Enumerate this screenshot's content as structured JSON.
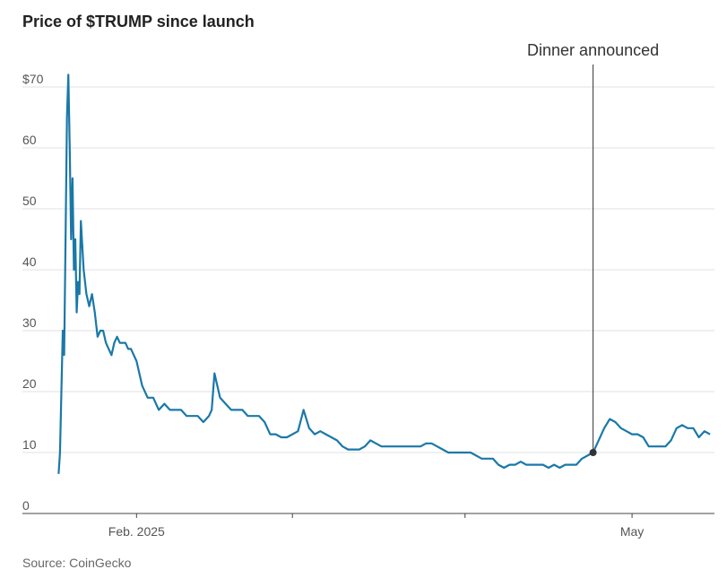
{
  "chart_data": {
    "type": "line",
    "title": "Price of $TRUMP since launch",
    "source": "Source: CoinGecko",
    "x": [
      18,
      18.25,
      18.5,
      18.75,
      19,
      19.25,
      19.5,
      19.75,
      20,
      20.25,
      20.5,
      20.75,
      21,
      21.25,
      21.5,
      21.75,
      22,
      22.5,
      23,
      23.5,
      24,
      24.5,
      25,
      25.5,
      26,
      26.5,
      27,
      27.5,
      28,
      28.5,
      29,
      29.5,
      30,
      30.5,
      31,
      31.5,
      32,
      33,
      34,
      35,
      36,
      37,
      38,
      39,
      40,
      41,
      42,
      43,
      44,
      45,
      45.5,
      46,
      47,
      48,
      49,
      50,
      51,
      52,
      53,
      54,
      55,
      56,
      57,
      58,
      59,
      60,
      61,
      62,
      63,
      64,
      65,
      66,
      67,
      68,
      69,
      70,
      71,
      72,
      73,
      74,
      75,
      76,
      77,
      78,
      79,
      80,
      81,
      82,
      83,
      84,
      85,
      86,
      87,
      88,
      89,
      90,
      91,
      92,
      93,
      94,
      95,
      96,
      97,
      98,
      99,
      100,
      101,
      102,
      103,
      104,
      105,
      106,
      107,
      108,
      109,
      110,
      111,
      112,
      113,
      114,
      115,
      116,
      117,
      118,
      119,
      120,
      121,
      122,
      123,
      124,
      125,
      126,
      127,
      128,
      129,
      130,
      131,
      132,
      133,
      134,
      135
    ],
    "values": [
      6.5,
      10,
      20,
      30,
      26,
      45,
      65,
      72,
      60,
      45,
      55,
      40,
      45,
      33,
      38,
      36,
      48,
      40,
      36,
      34,
      36,
      33,
      29,
      30,
      30,
      28,
      27,
      26,
      28,
      29,
      28,
      28,
      28,
      27,
      27,
      26,
      25,
      21,
      19,
      19,
      17,
      18,
      17,
      17,
      17,
      16,
      16,
      16,
      15,
      16,
      17,
      23,
      19,
      18,
      17,
      17,
      17,
      16,
      16,
      16,
      15,
      13,
      13,
      12.5,
      12.5,
      13,
      13.5,
      17,
      14,
      13,
      13.5,
      13,
      12.5,
      12,
      11,
      10.5,
      10.5,
      10.5,
      11,
      12,
      11.5,
      11,
      11,
      11,
      11,
      11,
      11,
      11,
      11,
      11.5,
      11.5,
      11,
      10.5,
      10,
      10,
      10,
      10,
      10,
      9.5,
      9,
      9,
      9,
      8,
      7.5,
      8,
      8,
      8.5,
      8,
      8,
      8,
      8,
      7.5,
      8,
      7.5,
      8,
      8,
      8,
      9,
      9.5,
      10,
      12,
      14,
      15.5,
      15,
      14,
      13.5,
      13,
      13,
      12.5,
      11,
      11,
      11,
      11,
      12,
      14,
      14.5,
      14,
      14,
      12.5,
      13.5,
      13
    ],
    "color": "#1a78a8",
    "xlim": [
      11.5,
      135.8
    ],
    "xticks": [
      {
        "value": 32,
        "label": "Feb. 2025"
      },
      {
        "value": 60,
        "label": null
      },
      {
        "value": 91,
        "label": null
      },
      {
        "value": 121,
        "label": "May"
      }
    ],
    "ylim": [
      0,
      73
    ],
    "yticks": [
      0,
      10,
      20,
      30,
      40,
      50,
      60,
      {
        "value": 70,
        "label": "$70"
      }
    ],
    "grid": true,
    "annotation": {
      "text": "Dinner announced",
      "x": 114,
      "y": 10
    }
  }
}
